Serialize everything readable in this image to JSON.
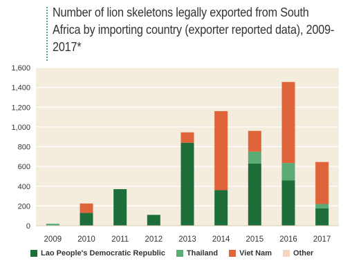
{
  "title": "Number of lion skeletons legally exported from South Africa by importing country (exporter reported data), 2009-2017*",
  "chart_data": {
    "type": "bar",
    "stacked": true,
    "categories": [
      "2009",
      "2010",
      "2011",
      "2012",
      "2013",
      "2014",
      "2015",
      "2016",
      "2017"
    ],
    "series": [
      {
        "name": "Lao People's Democratic Republic",
        "color": "#1e6e3c",
        "values": [
          0,
          130,
          370,
          110,
          840,
          360,
          630,
          460,
          175
        ]
      },
      {
        "name": "Thailand",
        "color": "#5aab76",
        "values": [
          20,
          0,
          0,
          0,
          0,
          0,
          120,
          175,
          45
        ]
      },
      {
        "name": "Viet Nam",
        "color": "#e0643a",
        "values": [
          0,
          95,
          0,
          0,
          105,
          800,
          210,
          820,
          425
        ]
      },
      {
        "name": "Other",
        "color": "#f6d5c0",
        "values": [
          0,
          0,
          0,
          0,
          0,
          0,
          0,
          0,
          0
        ]
      }
    ],
    "yticks": [
      "0",
      "200",
      "400",
      "600",
      "800",
      "1,000",
      "1,200",
      "1,400",
      "1,600"
    ],
    "ylim": [
      0,
      1600
    ],
    "grid": true,
    "plot_background": "#f4ecdd",
    "legend_position": "bottom"
  }
}
